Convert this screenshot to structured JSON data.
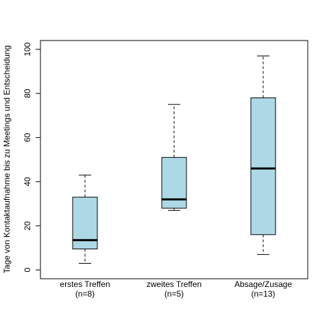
{
  "chart_data": {
    "type": "boxplot",
    "ylabel": "Tage von Kontaktaufnahme bis zu Meetings und Entscheidung",
    "xlabel": "",
    "ylim": [
      -4,
      104
    ],
    "yticks": [
      0,
      20,
      40,
      60,
      80,
      100
    ],
    "grid": false,
    "box_color": "#add8e6",
    "median_color": "#000000",
    "categories": [
      {
        "label": "erstes Treffen",
        "n_label": "(n=8)",
        "min": 3,
        "q1": 9.5,
        "median": 13.5,
        "q3": 33,
        "max": 43
      },
      {
        "label": "zweites Treffen",
        "n_label": "(n=5)",
        "min": 27,
        "q1": 28,
        "median": 32,
        "q3": 51,
        "max": 75
      },
      {
        "label": "Absage/Zusage",
        "n_label": "(n=13)",
        "min": 7,
        "q1": 16,
        "median": 46,
        "q3": 78,
        "max": 97
      }
    ]
  }
}
